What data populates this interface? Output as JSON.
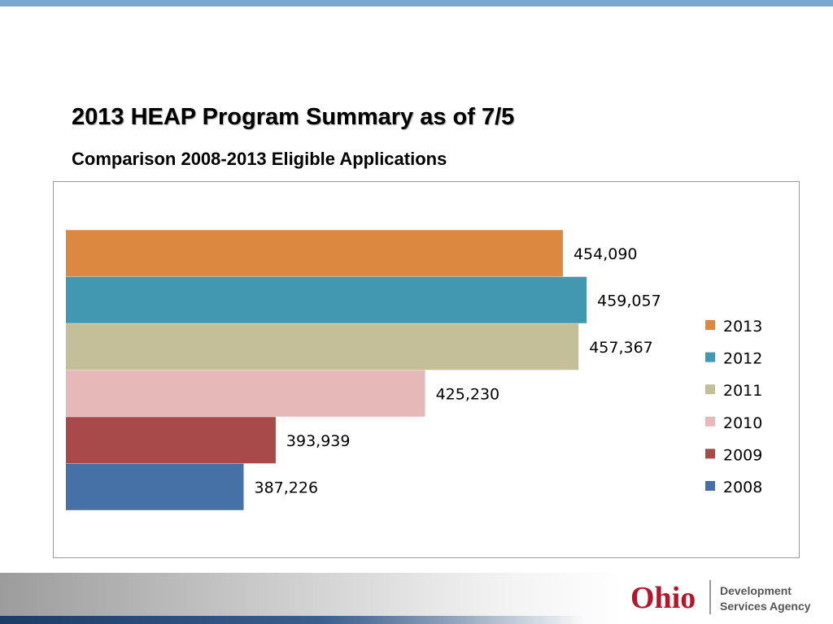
{
  "header": {
    "title": "2013 HEAP Program Summary as of 7/5",
    "subtitle": "Comparison 2008-2013 Eligible Applications"
  },
  "chart_data": {
    "type": "bar",
    "orientation": "horizontal",
    "title": "",
    "xlabel": "",
    "ylabel": "",
    "grid": false,
    "legend_position": "right",
    "series": [
      {
        "name": "2013",
        "value": 454090,
        "label": "454,090",
        "color": "#dd8840"
      },
      {
        "name": "2012",
        "value": 459057,
        "label": "459,057",
        "color": "#4398b1"
      },
      {
        "name": "2011",
        "value": 457367,
        "label": "457,367",
        "color": "#c5bf99"
      },
      {
        "name": "2010",
        "value": 425230,
        "label": "425,230",
        "color": "#e7b8b8"
      },
      {
        "name": "2009",
        "value": 393939,
        "label": "393,939",
        "color": "#a84a49"
      },
      {
        "name": "2008",
        "value": 387226,
        "label": "387,226",
        "color": "#4671a6"
      }
    ],
    "xlim": [
      350000,
      465000
    ]
  },
  "footer": {
    "logo_text": "Ohio",
    "agency_line1": "Development",
    "agency_line2": "Services Agency"
  }
}
